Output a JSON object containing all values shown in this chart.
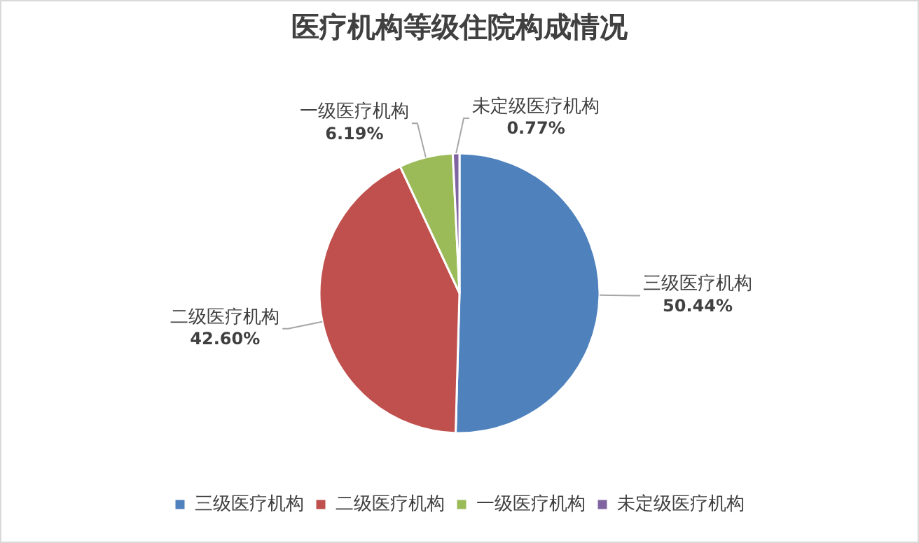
{
  "chart_data": {
    "type": "pie",
    "title": "医疗机构等级住院构成情况",
    "categories": [
      "三级医疗机构",
      "二级医疗机构",
      "一级医疗机构",
      "未定级医疗机构"
    ],
    "values": [
      50.44,
      42.6,
      6.19,
      0.77
    ],
    "colors": [
      "#4f81bd",
      "#c0504d",
      "#9bbb59",
      "#8064a2"
    ],
    "value_labels": [
      "50.44%",
      "42.60%",
      "6.19%",
      "0.77%"
    ],
    "legend": "bottom"
  }
}
